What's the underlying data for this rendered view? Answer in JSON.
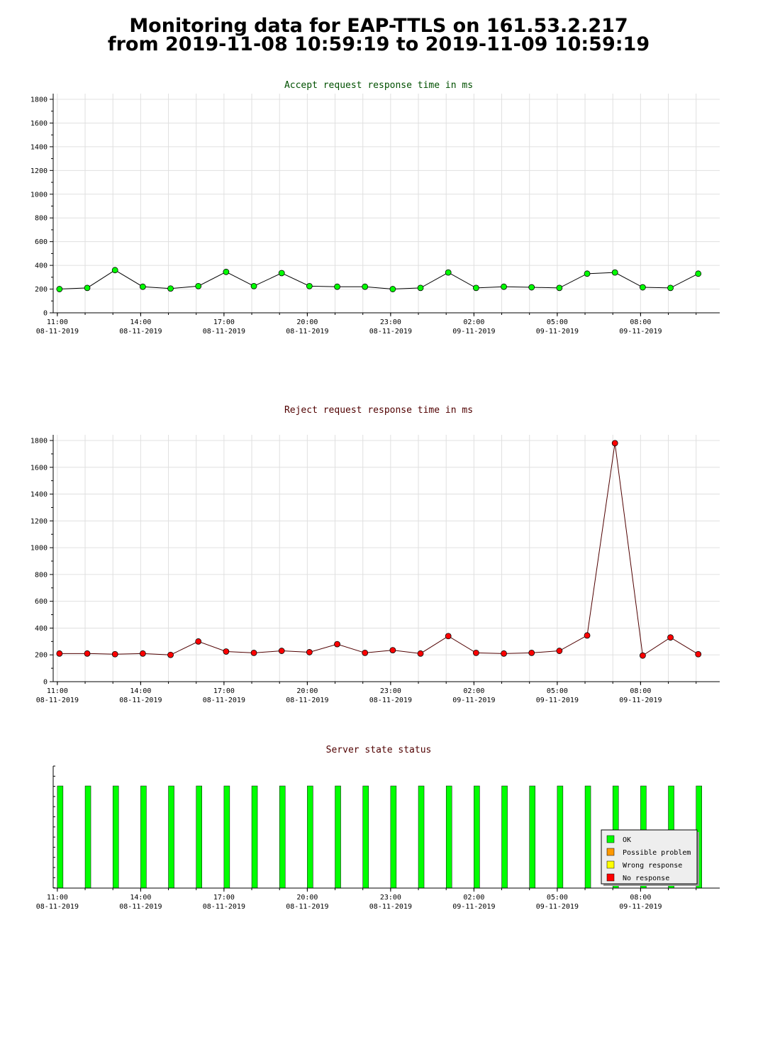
{
  "page": {
    "title_line1": "Monitoring data for EAP-TTLS on 161.53.2.217",
    "title_line2": "from 2019-11-08 10:59:19 to 2019-11-09 10:59:19"
  },
  "x_axis": {
    "range": [
      "2019-11-08 10:51",
      "2019-11-09 10:51"
    ],
    "ticks": [
      {
        "time": "2019-11-08 11:00",
        "line1": "11:00",
        "line2": "08-11-2019"
      },
      {
        "time": "2019-11-08 14:00",
        "line1": "14:00",
        "line2": "08-11-2019"
      },
      {
        "time": "2019-11-08 17:00",
        "line1": "17:00",
        "line2": "08-11-2019"
      },
      {
        "time": "2019-11-08 20:00",
        "line1": "20:00",
        "line2": "08-11-2019"
      },
      {
        "time": "2019-11-08 23:00",
        "line1": "23:00",
        "line2": "08-11-2019"
      },
      {
        "time": "2019-11-09 02:00",
        "line1": "02:00",
        "line2": "09-11-2019"
      },
      {
        "time": "2019-11-09 05:00",
        "line1": "05:00",
        "line2": "09-11-2019"
      },
      {
        "time": "2019-11-09 08:00",
        "line1": "08:00",
        "line2": "09-11-2019"
      }
    ]
  },
  "chart_data": [
    {
      "type": "line",
      "title": "Accept request response time in ms",
      "ylim": [
        0,
        1800
      ],
      "yticks": [
        0,
        200,
        400,
        600,
        800,
        1000,
        1200,
        1400,
        1600,
        1800
      ],
      "grid": true,
      "line_color": "#000000",
      "marker_color": "#00ff00",
      "title_color": "#005000",
      "x": [
        "2019-11-08 11:00",
        "2019-11-08 12:00",
        "2019-11-08 13:00",
        "2019-11-08 14:00",
        "2019-11-08 15:00",
        "2019-11-08 16:00",
        "2019-11-08 17:00",
        "2019-11-08 18:00",
        "2019-11-08 19:00",
        "2019-11-08 20:00",
        "2019-11-08 21:00",
        "2019-11-08 22:00",
        "2019-11-08 23:00",
        "2019-11-09 00:00",
        "2019-11-09 01:00",
        "2019-11-09 02:00",
        "2019-11-09 03:00",
        "2019-11-09 04:00",
        "2019-11-09 05:00",
        "2019-11-09 06:00",
        "2019-11-09 07:00",
        "2019-11-09 08:00",
        "2019-11-09 09:00",
        "2019-11-09 10:00"
      ],
      "values": [
        200,
        210,
        360,
        220,
        205,
        225,
        345,
        225,
        335,
        225,
        220,
        220,
        200,
        210,
        340,
        210,
        220,
        215,
        210,
        330,
        340,
        215,
        210,
        330
      ]
    },
    {
      "type": "line",
      "title": "Reject request response time in ms",
      "ylim": [
        0,
        1800
      ],
      "yticks": [
        0,
        200,
        400,
        600,
        800,
        1000,
        1200,
        1400,
        1600,
        1800
      ],
      "grid": true,
      "line_color": "#500000",
      "marker_color": "#ff0000",
      "title_color": "#500000",
      "x": [
        "2019-11-08 11:00",
        "2019-11-08 12:00",
        "2019-11-08 13:00",
        "2019-11-08 14:00",
        "2019-11-08 15:00",
        "2019-11-08 16:00",
        "2019-11-08 17:00",
        "2019-11-08 18:00",
        "2019-11-08 19:00",
        "2019-11-08 20:00",
        "2019-11-08 21:00",
        "2019-11-08 22:00",
        "2019-11-08 23:00",
        "2019-11-09 00:00",
        "2019-11-09 01:00",
        "2019-11-09 02:00",
        "2019-11-09 03:00",
        "2019-11-09 04:00",
        "2019-11-09 05:00",
        "2019-11-09 06:00",
        "2019-11-09 07:00",
        "2019-11-09 08:00",
        "2019-11-09 09:00",
        "2019-11-09 10:00"
      ],
      "values": [
        210,
        210,
        205,
        210,
        200,
        300,
        225,
        215,
        230,
        220,
        280,
        215,
        235,
        210,
        340,
        215,
        210,
        215,
        230,
        345,
        1780,
        195,
        330,
        205
      ]
    },
    {
      "type": "bar",
      "title": "Server state status",
      "title_color": "#500000",
      "grid": false,
      "legend_position": "bottom-right",
      "states": [
        {
          "label": "OK",
          "color": "#00ff00"
        },
        {
          "label": "Possible problem",
          "color": "#ff9900"
        },
        {
          "label": "Wrong response",
          "color": "#ffff00"
        },
        {
          "label": "No response",
          "color": "#ff0000"
        }
      ],
      "x": [
        "2019-11-08 11:00",
        "2019-11-08 12:00",
        "2019-11-08 13:00",
        "2019-11-08 14:00",
        "2019-11-08 15:00",
        "2019-11-08 16:00",
        "2019-11-08 17:00",
        "2019-11-08 18:00",
        "2019-11-08 19:00",
        "2019-11-08 20:00",
        "2019-11-08 21:00",
        "2019-11-08 22:00",
        "2019-11-08 23:00",
        "2019-11-09 00:00",
        "2019-11-09 01:00",
        "2019-11-09 02:00",
        "2019-11-09 03:00",
        "2019-11-09 04:00",
        "2019-11-09 05:00",
        "2019-11-09 06:00",
        "2019-11-09 07:00",
        "2019-11-09 08:00",
        "2019-11-09 09:00",
        "2019-11-09 10:00"
      ],
      "values": [
        "OK",
        "OK",
        "OK",
        "OK",
        "OK",
        "OK",
        "OK",
        "OK",
        "OK",
        "OK",
        "OK",
        "OK",
        "OK",
        "OK",
        "OK",
        "OK",
        "OK",
        "OK",
        "OK",
        "OK",
        "OK",
        "OK",
        "OK",
        "OK"
      ]
    }
  ]
}
